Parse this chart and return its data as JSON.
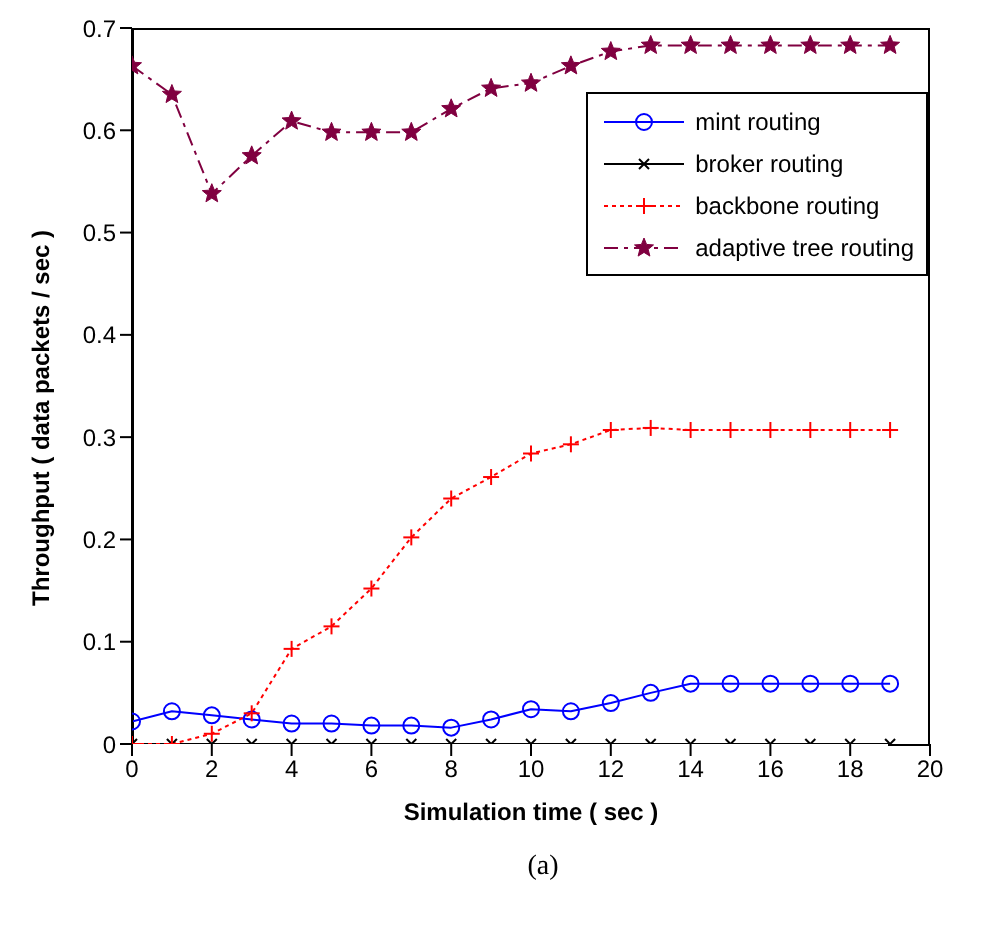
{
  "chart_data": {
    "type": "line",
    "xlabel": "Simulation time ( sec )",
    "ylabel": "Throughput ( data packets / sec )",
    "x": [
      0,
      1,
      2,
      3,
      4,
      5,
      6,
      7,
      8,
      9,
      10,
      11,
      12,
      13,
      14,
      15,
      16,
      17,
      18,
      19
    ],
    "series": [
      {
        "name": "mint routing",
        "color": "#0000ff",
        "marker": "circle",
        "line_style": "solid",
        "values": [
          0.022,
          0.032,
          0.028,
          0.024,
          0.02,
          0.02,
          0.018,
          0.018,
          0.016,
          0.024,
          0.034,
          0.032,
          0.04,
          0.05,
          0.059,
          0.059,
          0.059,
          0.059,
          0.059,
          0.059
        ]
      },
      {
        "name": "broker routing",
        "color": "#000000",
        "marker": "cross",
        "line_style": "solid",
        "values": [
          0,
          0,
          0,
          0,
          0,
          0,
          0,
          0,
          0,
          0,
          0,
          0,
          0,
          0,
          0,
          0,
          0,
          0,
          0,
          0
        ]
      },
      {
        "name": "backbone routing",
        "color": "#ff0000",
        "marker": "plus",
        "line_style": "dotted",
        "values": [
          0,
          0,
          0.01,
          0.03,
          0.093,
          0.115,
          0.152,
          0.202,
          0.24,
          0.261,
          0.284,
          0.293,
          0.307,
          0.309,
          0.307,
          0.307,
          0.307,
          0.307,
          0.307,
          0.307
        ]
      },
      {
        "name": "adaptive tree routing",
        "color": "#800040",
        "marker": "star",
        "line_style": "dashed",
        "values": [
          0.663,
          0.635,
          0.538,
          0.575,
          0.609,
          0.598,
          0.598,
          0.598,
          0.621,
          0.641,
          0.646,
          0.663,
          0.677,
          0.683,
          0.683,
          0.683,
          0.683,
          0.683,
          0.683,
          0.683
        ]
      }
    ],
    "xlim": [
      0,
      20
    ],
    "xticks": [
      0,
      2,
      4,
      6,
      8,
      10,
      12,
      14,
      16,
      18,
      20
    ],
    "ylim": [
      0,
      0.7
    ],
    "yticks": [
      0,
      0.1,
      0.2,
      0.3,
      0.4,
      0.5,
      0.6,
      0.7
    ],
    "grid": false,
    "legend": "top right",
    "annotations": [
      "(a)"
    ]
  }
}
